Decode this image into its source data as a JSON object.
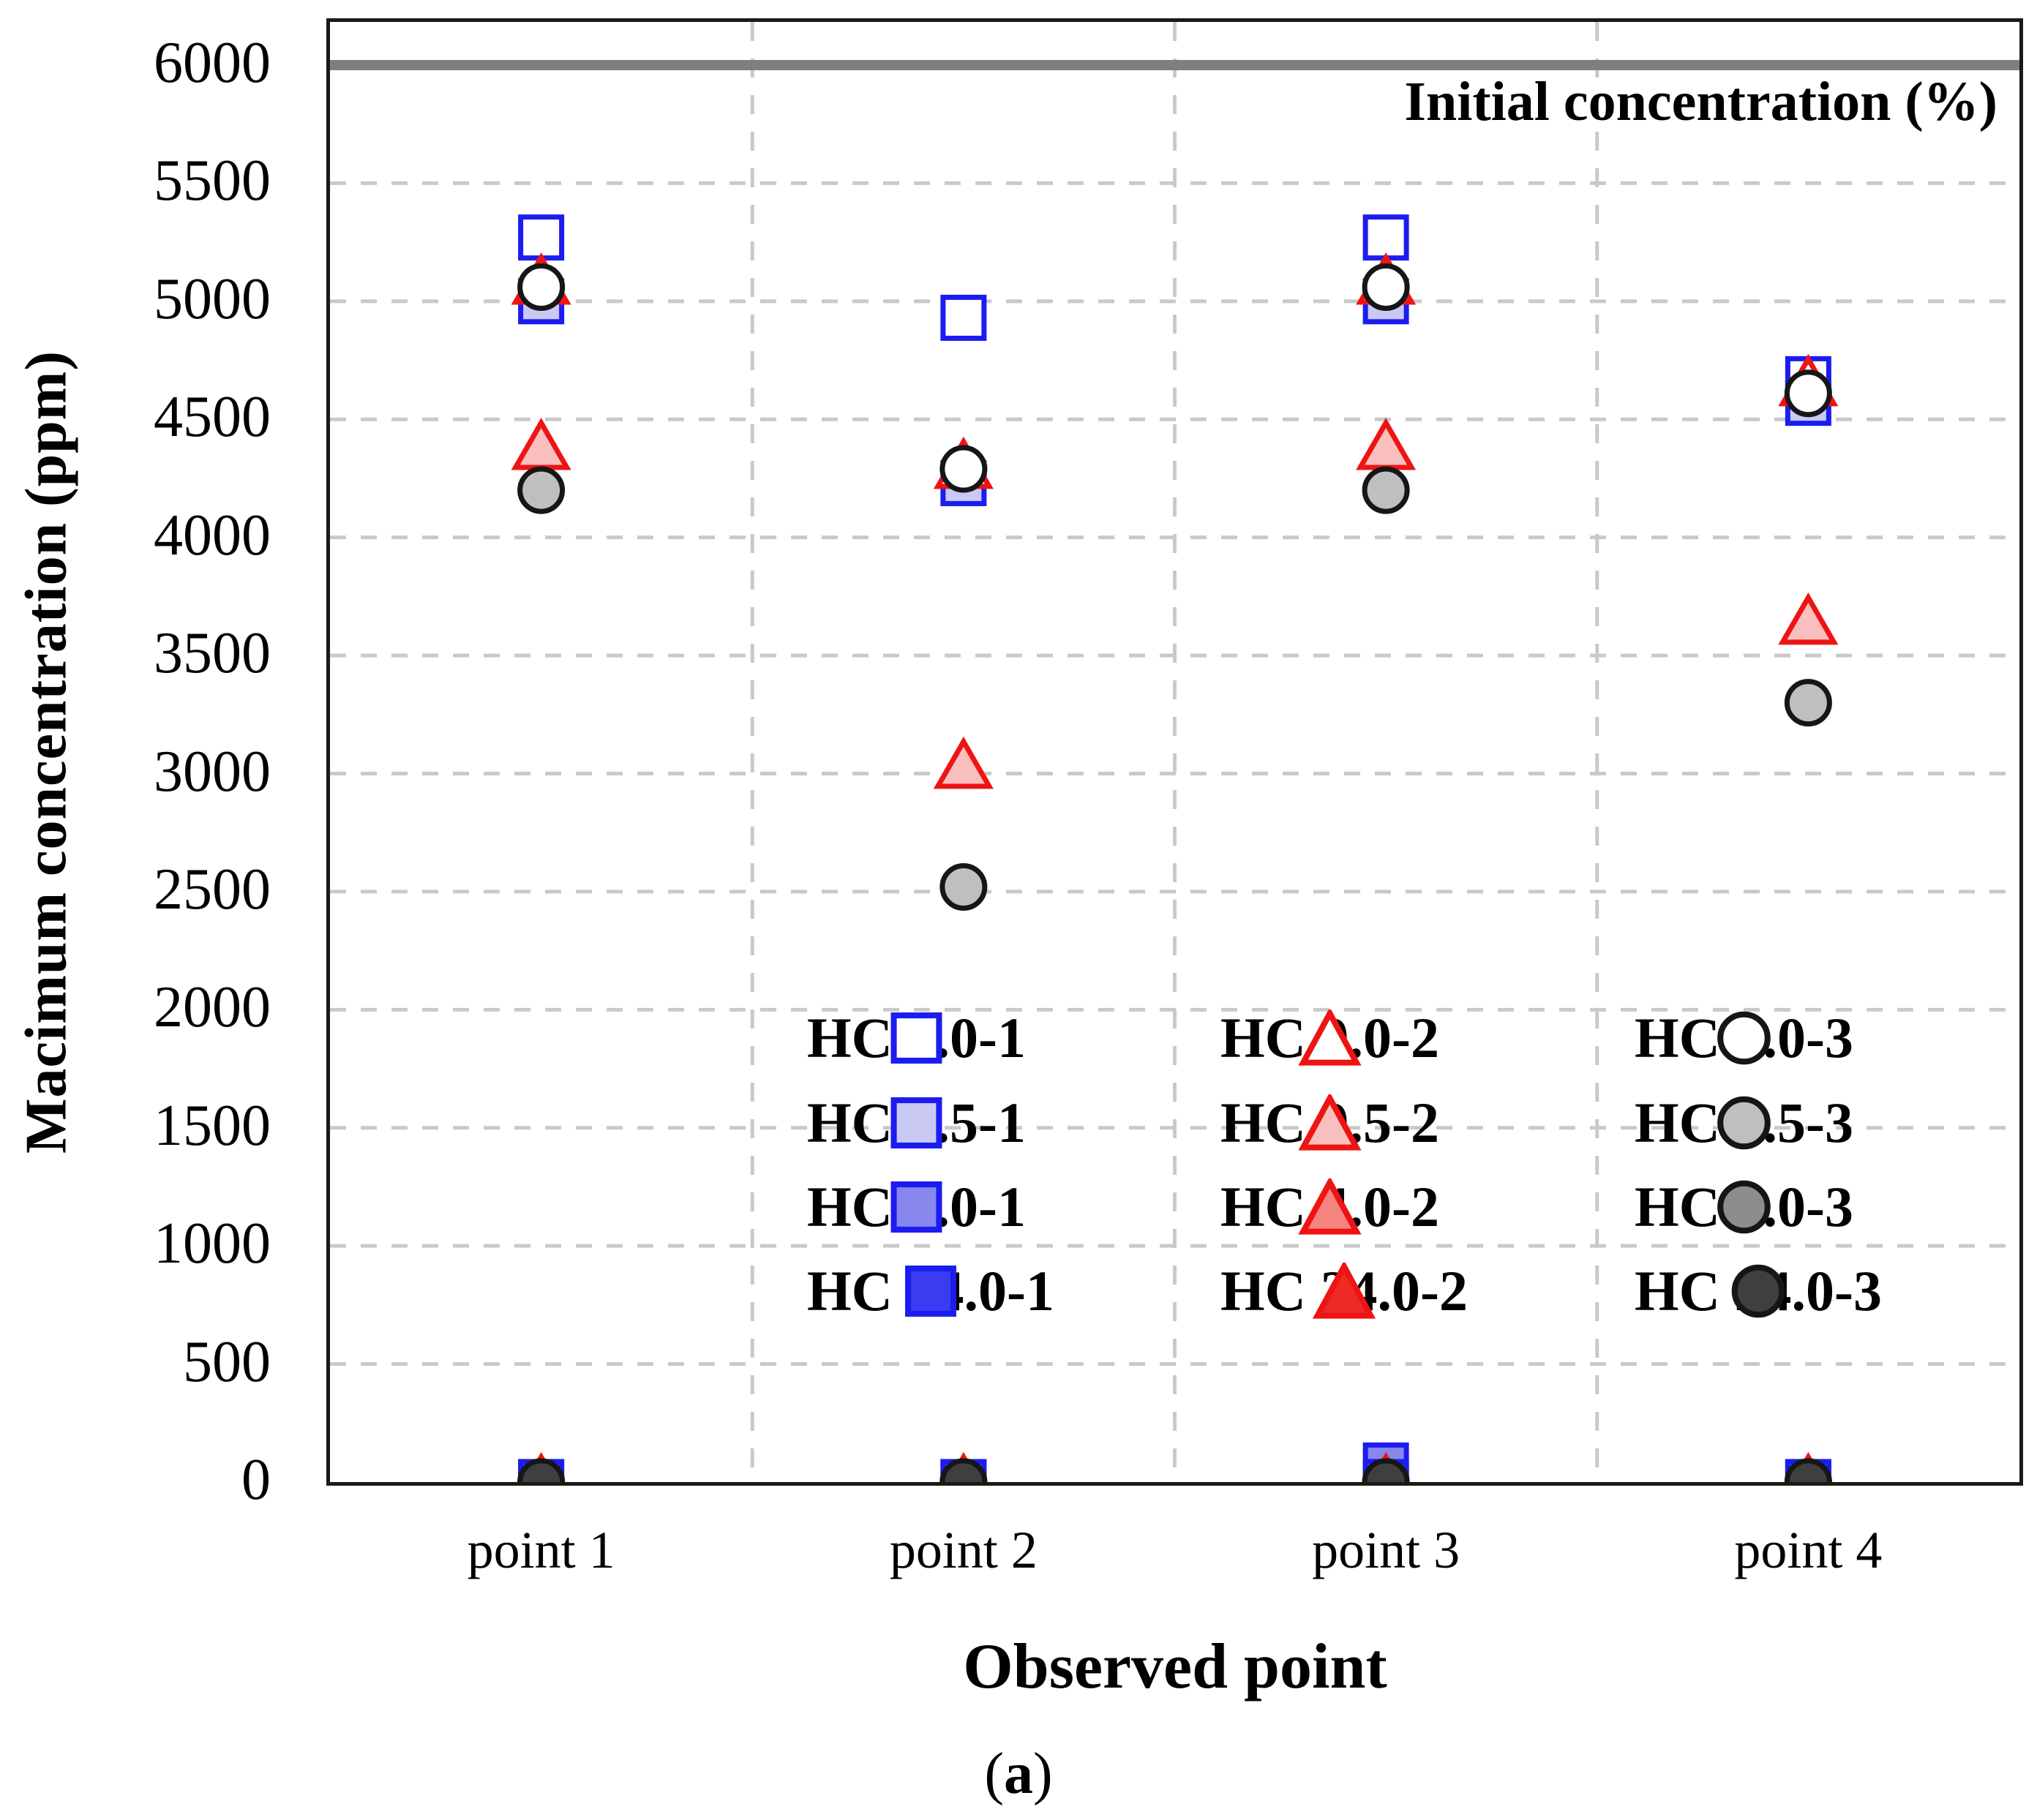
{
  "figure": {
    "caption": {
      "open": "(",
      "letter": "a",
      "close": ")"
    }
  },
  "chart_data": {
    "type": "scatter",
    "title": "",
    "xlabel": "Observed point",
    "ylabel": "Macimum concentration (ppm)",
    "categories": [
      "point 1",
      "point 2",
      "point 3",
      "point 4"
    ],
    "ylim": [
      0,
      6000
    ],
    "ytick_step": 500,
    "yticks": [
      0,
      500,
      1000,
      1500,
      2000,
      2500,
      3000,
      3500,
      4000,
      4500,
      5000,
      5500,
      6000
    ],
    "grid": {
      "horizontal": "dashed",
      "vertical_separators": "dashed at category boundaries",
      "color": "#c9c9c9"
    },
    "frame_color": "#1a1a1a",
    "reference_line": {
      "value": 6000,
      "label": "Initial concentration (%)",
      "color": "#7f7f7f"
    },
    "legend_position": "inside plot, lower center-right, 3 columns x 4 rows, no border",
    "legend_columns": [
      [
        0,
        1,
        2,
        3
      ],
      [
        4,
        5,
        6,
        7
      ],
      [
        8,
        9,
        10,
        11
      ]
    ],
    "series": [
      {
        "name": "HC 0.0-1",
        "marker": "square",
        "stroke": "#1c1cf0",
        "fill": "#ffffff",
        "values": [
          5270,
          4930,
          5270,
          4670
        ]
      },
      {
        "name": "HC 0.5-1",
        "marker": "square",
        "stroke": "#1c1cf0",
        "fill": "#c9c9f4",
        "values": [
          5000,
          4230,
          5000,
          4570
        ]
      },
      {
        "name": "HC 4.0-1",
        "marker": "square",
        "stroke": "#1c1cf0",
        "fill": "#8787ee",
        "values": [
          0,
          0,
          70,
          0
        ]
      },
      {
        "name": "HC 24.0-1",
        "marker": "square",
        "stroke": "#1c1cf0",
        "fill": "#3b3bf0",
        "values": [
          0,
          0,
          0,
          0
        ]
      },
      {
        "name": "HC 0.0-2",
        "marker": "triangle",
        "stroke": "#ee1414",
        "fill": "#ffffff",
        "values": [
          5080,
          4300,
          5080,
          4650
        ]
      },
      {
        "name": "HC 0.5-2",
        "marker": "triangle",
        "stroke": "#ee1414",
        "fill": "#f9bfbe",
        "values": [
          4380,
          3030,
          4380,
          3640
        ]
      },
      {
        "name": "HC 4.0-2",
        "marker": "triangle",
        "stroke": "#ee1414",
        "fill": "#f58481",
        "values": [
          0,
          0,
          0,
          0
        ]
      },
      {
        "name": "HC 24.0-2",
        "marker": "triangle",
        "stroke": "#ee1414",
        "fill": "#ee2a27",
        "values": [
          0,
          0,
          0,
          0
        ]
      },
      {
        "name": "HC 0.0-3",
        "marker": "circle",
        "stroke": "#161616",
        "fill": "#ffffff",
        "values": [
          5060,
          4290,
          5060,
          4610
        ]
      },
      {
        "name": "HC 0.5-3",
        "marker": "circle",
        "stroke": "#161616",
        "fill": "#bfbfbf",
        "values": [
          4200,
          2520,
          4200,
          3300
        ]
      },
      {
        "name": "HC 4.0-3",
        "marker": "circle",
        "stroke": "#161616",
        "fill": "#8d8d8d",
        "values": [
          0,
          0,
          0,
          0
        ]
      },
      {
        "name": "HC 24.0-3",
        "marker": "circle",
        "stroke": "#161616",
        "fill": "#3f3f3f",
        "values": [
          0,
          0,
          0,
          0
        ]
      }
    ]
  }
}
